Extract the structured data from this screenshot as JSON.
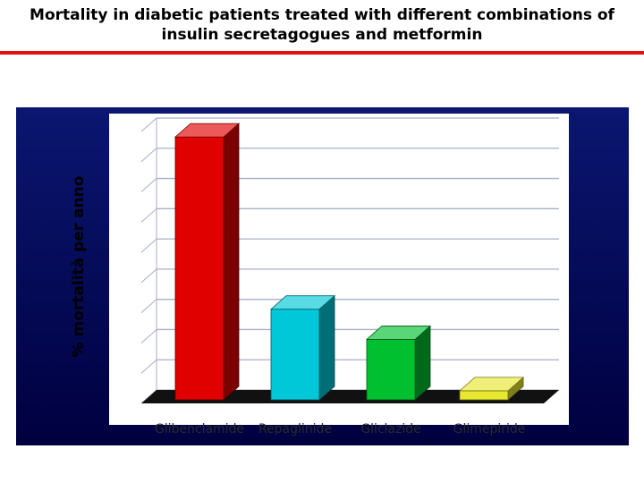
{
  "header": {
    "title_line1": "Mortality in diabetic patients treated with different combinations of",
    "title_line2": "insulin secretagogues and metformin"
  },
  "colors": {
    "rule": "#e01010",
    "frame_dark": "#000040",
    "frame_mid": "#0a1670",
    "plot_bg": "#ffffff",
    "gridline": "#a8aec8",
    "floor": "#111111"
  },
  "chart_data": {
    "type": "bar",
    "title": "",
    "xlabel": "",
    "ylabel": "% mortalità per anno",
    "categories": [
      "Glibenclamide",
      "Repaglinide",
      "Gliclazide",
      "Glimepiride"
    ],
    "values": [
      8.7,
      3.0,
      2.0,
      0.3
    ],
    "ylim": [
      0,
      9
    ],
    "grid": true,
    "bar_style": "3d",
    "bar_colors": [
      "#e00000",
      "#00c8d8",
      "#00c030",
      "#e8e830"
    ]
  }
}
